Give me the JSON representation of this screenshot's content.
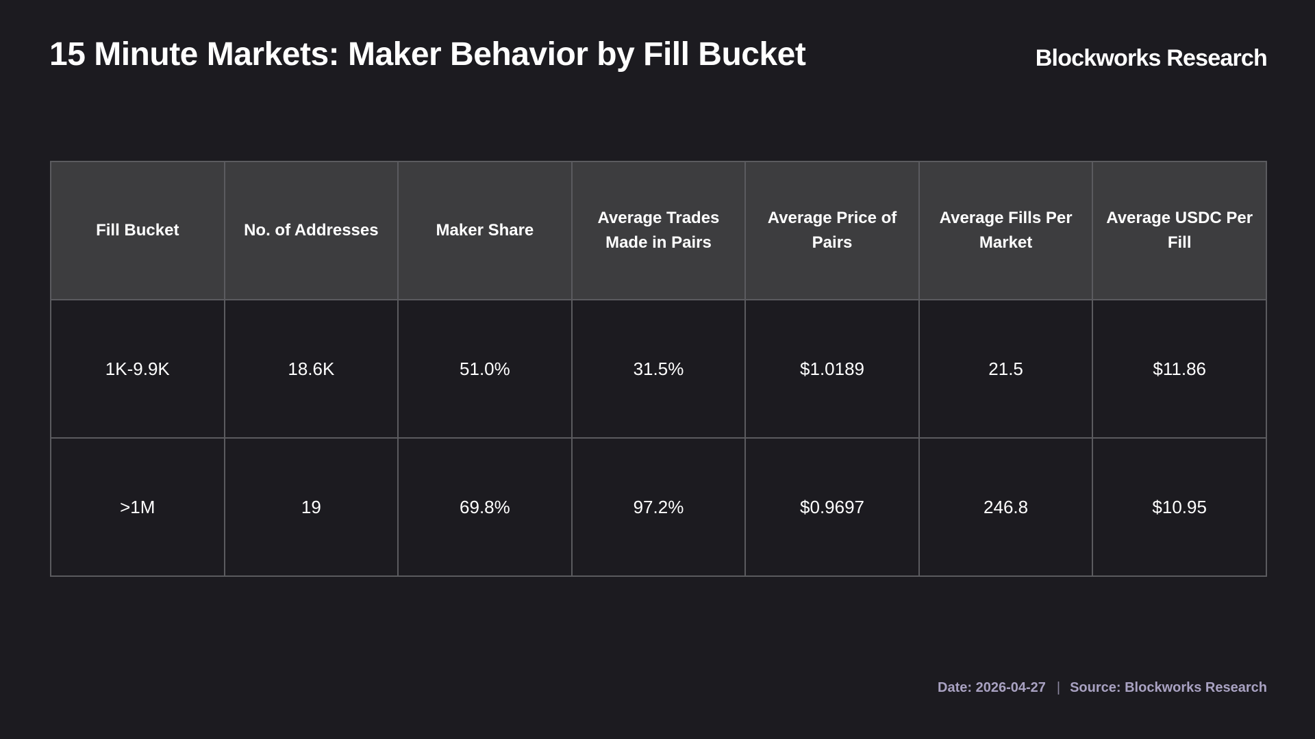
{
  "header": {
    "title": "15 Minute Markets: Maker Behavior by Fill Bucket",
    "brand": "Blockworks Research"
  },
  "chart_data": {
    "type": "table",
    "columns": [
      "Fill Bucket",
      "No. of Addresses",
      "Maker Share",
      "Average Trades Made in Pairs",
      "Average Price of Pairs",
      "Average Fills Per Market",
      "Average USDC Per Fill"
    ],
    "rows": [
      [
        "1K-9.9K",
        "18.6K",
        "51.0%",
        "31.5%",
        "$1.0189",
        "21.5",
        "$11.86"
      ],
      [
        ">1M",
        "19",
        "69.8%",
        "97.2%",
        "$0.9697",
        "246.8",
        "$10.95"
      ]
    ]
  },
  "footer": {
    "date": "Date: 2026-04-27",
    "separator": "|",
    "source": "Source: Blockworks Research"
  },
  "colors": {
    "background": "#1c1b20",
    "header_fill": "#3d3d3f",
    "grid": "#5b5b5f",
    "footer_text": "#a9a2c2"
  }
}
